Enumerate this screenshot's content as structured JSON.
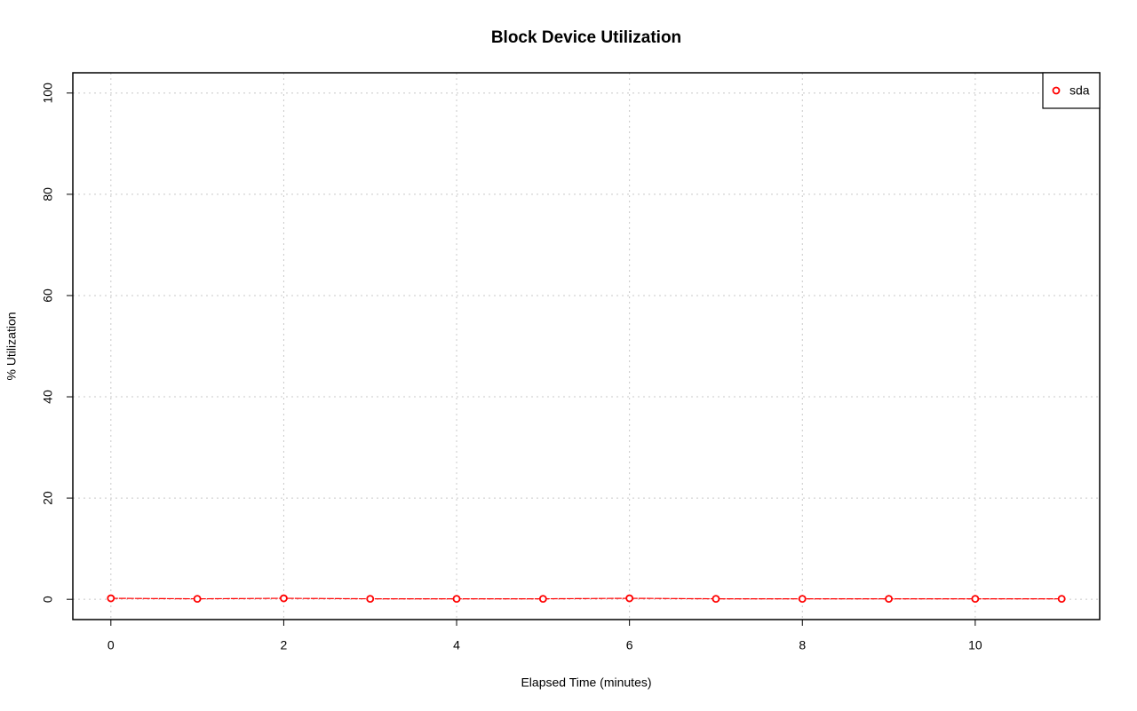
{
  "chart_data": {
    "type": "line",
    "title": "Block Device Utilization",
    "x_label": "Elapsed Time (minutes)",
    "y_label": "% Utilization",
    "x": [
      0,
      1,
      2,
      3,
      4,
      5,
      6,
      7,
      8,
      9,
      10,
      11
    ],
    "series": [
      {
        "name": "sda",
        "color": "#ff0000",
        "values": [
          0.2,
          0.1,
          0.2,
          0.1,
          0.1,
          0.1,
          0.2,
          0.1,
          0.1,
          0.1,
          0.1,
          0.1
        ]
      }
    ],
    "xlim": [
      -0.44,
      11.44
    ],
    "ylim": [
      -4,
      104
    ],
    "xticks": [
      0,
      2,
      4,
      6,
      8,
      10
    ],
    "yticks": [
      0,
      20,
      40,
      60,
      80,
      100
    ],
    "grid": true,
    "legend": "top-right"
  }
}
